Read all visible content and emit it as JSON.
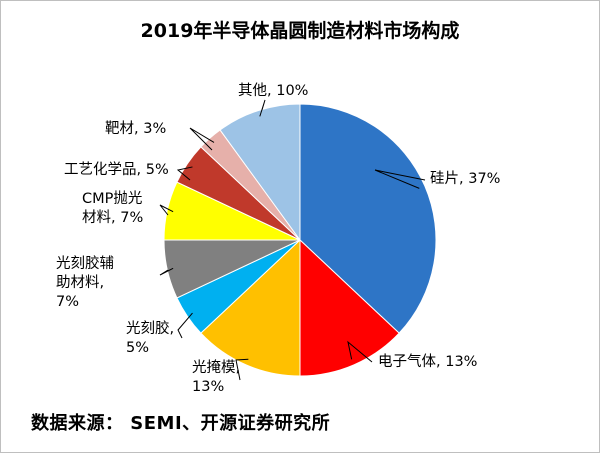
{
  "chart_data": {
    "type": "pie",
    "title": "2019年半导体晶圆制造材料市场构成",
    "start_angle_deg": 0,
    "direction": "clockwise",
    "slices": [
      {
        "name": "硅片",
        "label_lines": [
          "硅片, 37%"
        ],
        "value": 37,
        "color": "#2e75c6"
      },
      {
        "name": "电子气体",
        "label_lines": [
          "电子气体, 13%"
        ],
        "value": 13,
        "color": "#ff0000"
      },
      {
        "name": "光掩模",
        "label_lines": [
          "光掩模,",
          "13%"
        ],
        "value": 13,
        "color": "#ffc000"
      },
      {
        "name": "光刻胶",
        "label_lines": [
          "光刻胶,",
          "5%"
        ],
        "value": 5,
        "color": "#00b0f0"
      },
      {
        "name": "光刻胶辅助材料",
        "label_lines": [
          "光刻胶辅",
          "助材料,",
          "7%"
        ],
        "value": 7,
        "color": "#808080"
      },
      {
        "name": "CMP抛光材料",
        "label_lines": [
          "CMP抛光",
          "材料, 7%"
        ],
        "value": 7,
        "color": "#ffff00"
      },
      {
        "name": "工艺化学品",
        "label_lines": [
          "工艺化学品, 5%"
        ],
        "value": 5,
        "color": "#c0392b"
      },
      {
        "name": "靶材",
        "label_lines": [
          "靶材, 3%"
        ],
        "value": 3,
        "color": "#e6b0aa"
      },
      {
        "name": "其他",
        "label_lines": [
          "其他, 10%"
        ],
        "value": 10,
        "color": "#9dc3e6"
      }
    ]
  },
  "source": "数据来源： SEMI、开源证券研究所"
}
